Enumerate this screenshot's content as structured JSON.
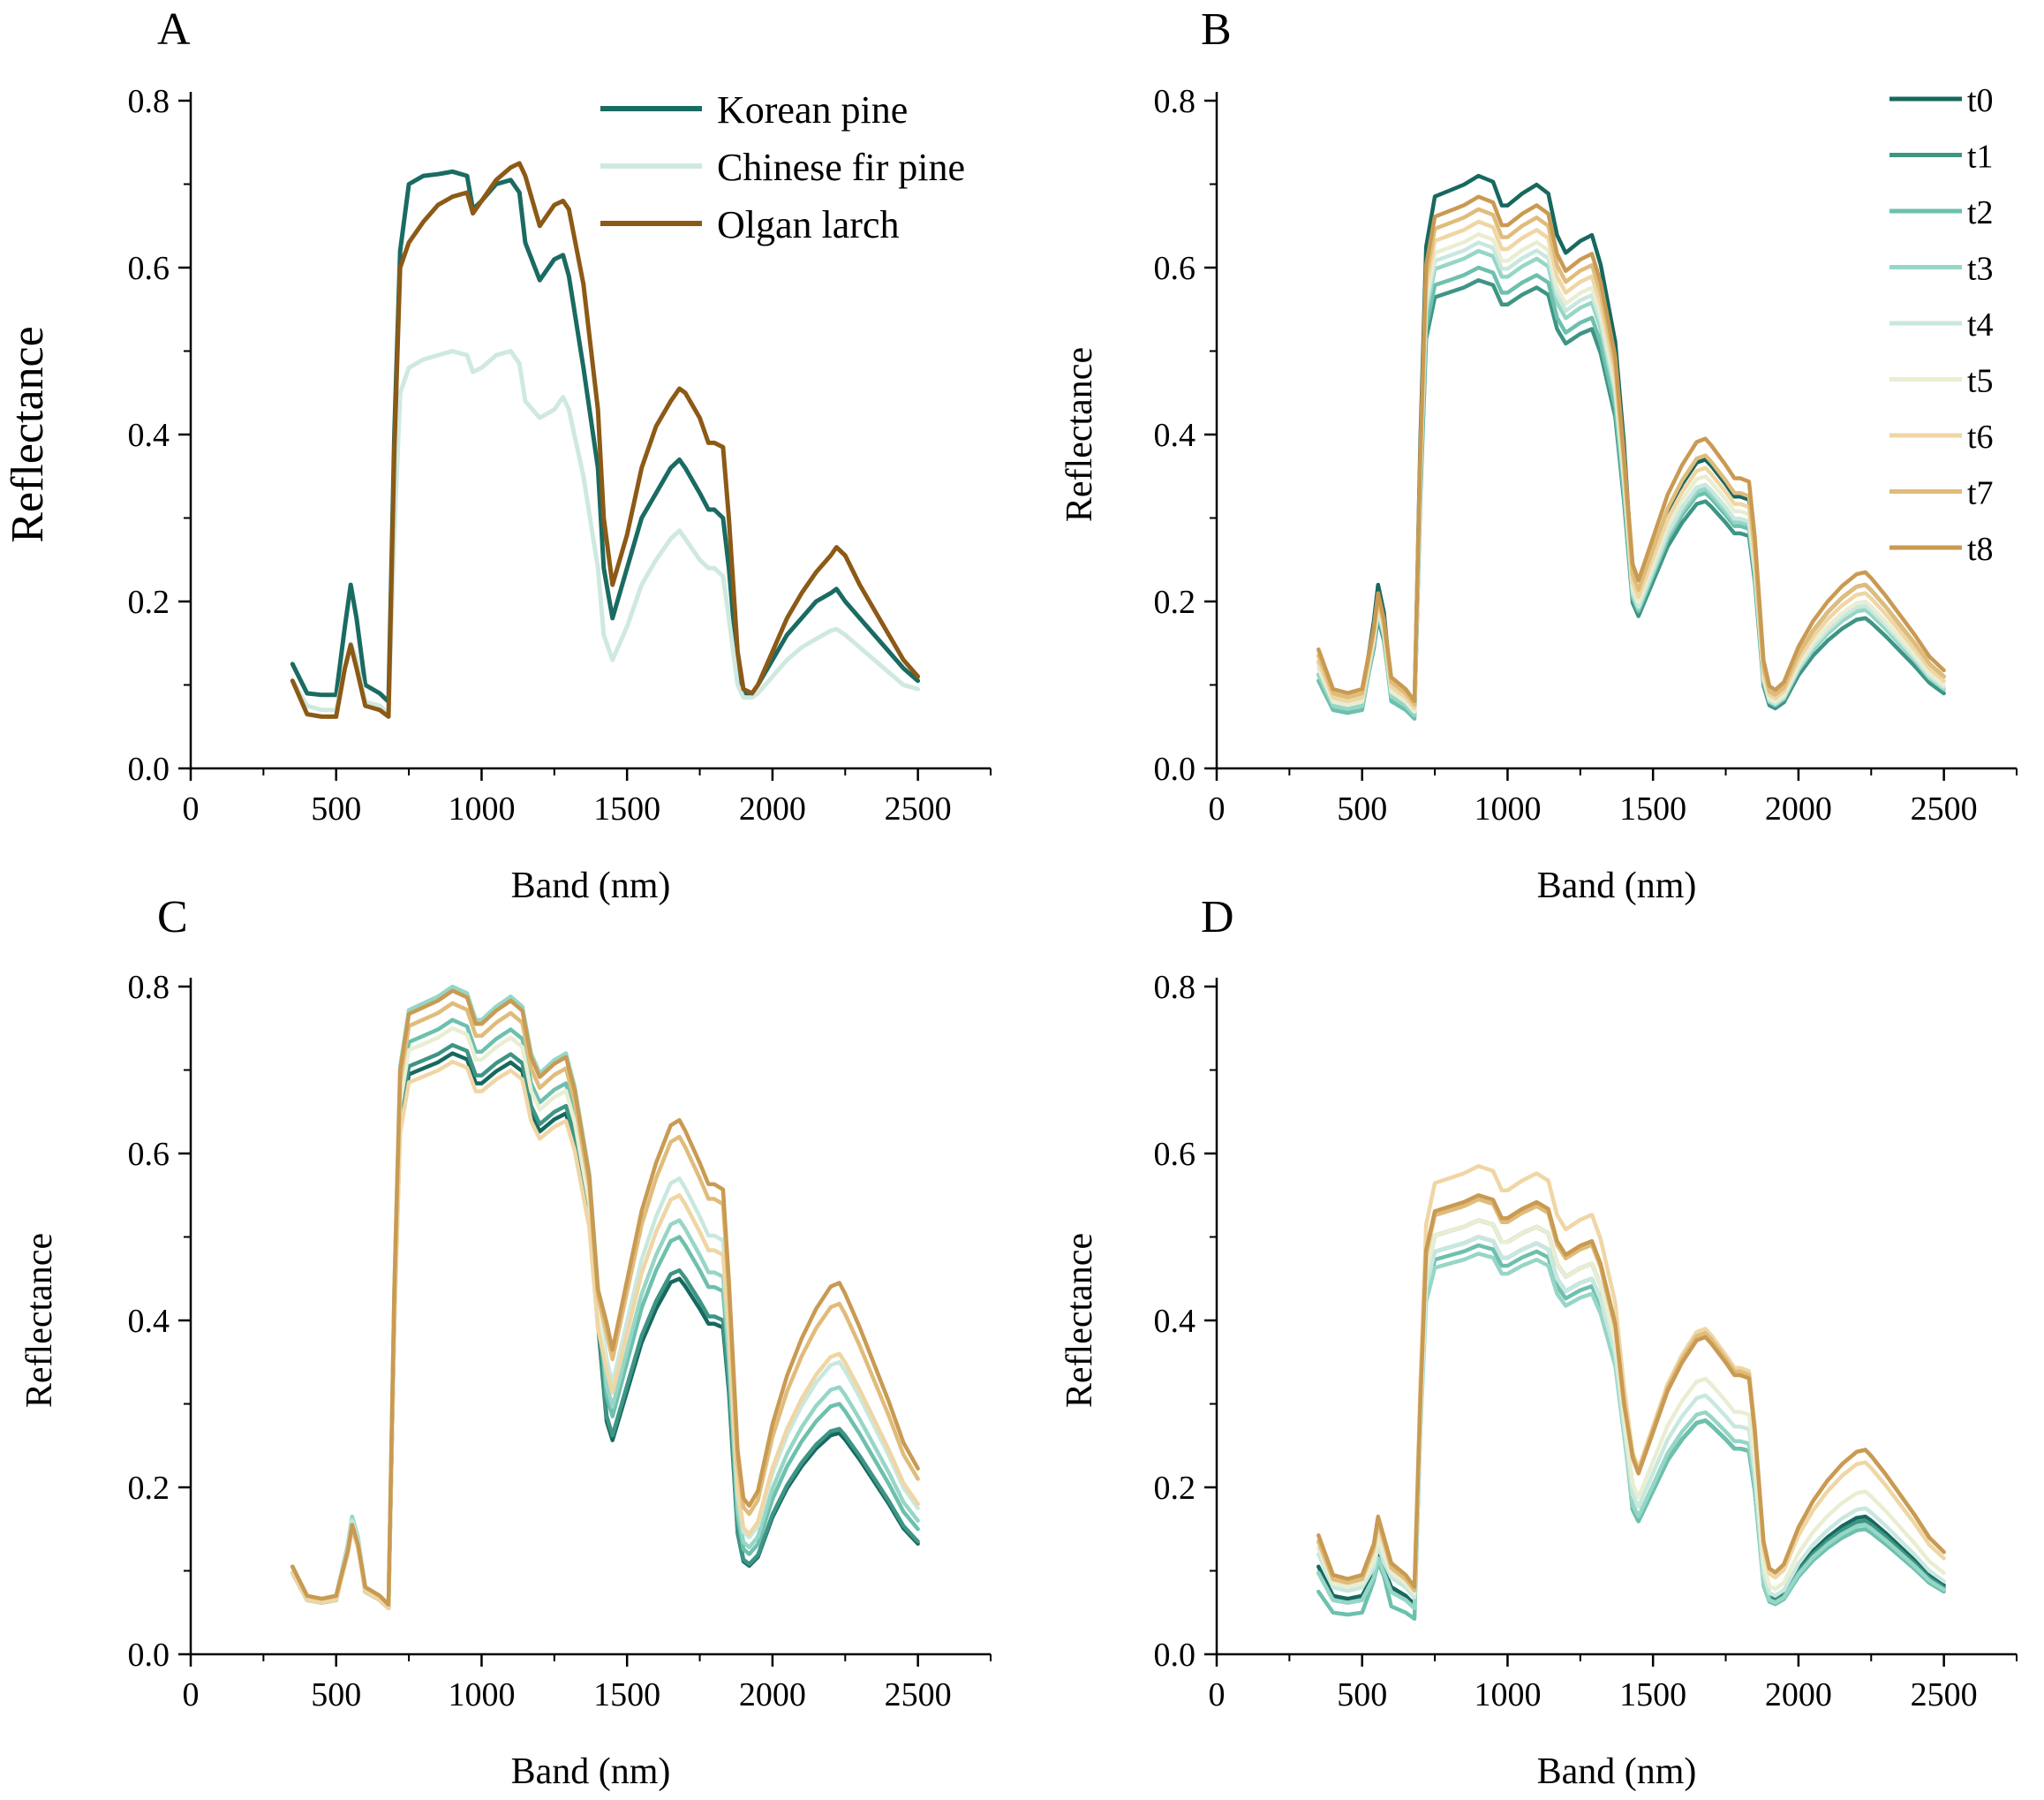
{
  "figure": {
    "panel_labels": [
      "A",
      "B",
      "C",
      "D"
    ]
  },
  "colors": {
    "korean": "#1a6b62",
    "chinese": "#cfe9e0",
    "olgan": "#8c5a16",
    "t0": "#17685f",
    "t1": "#3e9585",
    "t2": "#6dc0ad",
    "t3": "#96d6c6",
    "t4": "#c8e8df",
    "t5": "#e9eed2",
    "t6": "#efd6a4",
    "t7": "#e0bc7b",
    "t8": "#c99a52"
  },
  "chart_data": [
    {
      "panel": "A",
      "type": "line",
      "xlabel": "Band (nm)",
      "ylabel": "Reflectance",
      "xlim": [
        0,
        2750
      ],
      "ylim": [
        0,
        0.8
      ],
      "xticks": [
        0,
        500,
        1000,
        1500,
        2000,
        2500
      ],
      "yticks": [
        0.0,
        0.2,
        0.4,
        0.6,
        0.8
      ],
      "legend_position": "top-right",
      "x": [
        350,
        400,
        450,
        500,
        530,
        550,
        570,
        600,
        650,
        680,
        700,
        720,
        750,
        800,
        850,
        900,
        950,
        970,
        1000,
        1050,
        1100,
        1130,
        1150,
        1200,
        1250,
        1280,
        1300,
        1350,
        1400,
        1420,
        1450,
        1500,
        1550,
        1600,
        1650,
        1680,
        1700,
        1750,
        1780,
        1800,
        1830,
        1850,
        1880,
        1900,
        1930,
        1950,
        2000,
        2050,
        2100,
        2150,
        2200,
        2220,
        2250,
        2300,
        2350,
        2400,
        2450,
        2500
      ],
      "series": [
        {
          "name": "Korean pine",
          "color_key": "korean",
          "values": [
            0.125,
            0.09,
            0.088,
            0.088,
            0.17,
            0.22,
            0.18,
            0.1,
            0.09,
            0.08,
            0.4,
            0.62,
            0.7,
            0.71,
            0.712,
            0.715,
            0.71,
            0.67,
            0.68,
            0.7,
            0.705,
            0.69,
            0.63,
            0.585,
            0.61,
            0.615,
            0.59,
            0.48,
            0.36,
            0.24,
            0.18,
            0.24,
            0.3,
            0.33,
            0.36,
            0.37,
            0.36,
            0.33,
            0.31,
            0.31,
            0.3,
            0.24,
            0.12,
            0.09,
            0.09,
            0.1,
            0.13,
            0.16,
            0.18,
            0.2,
            0.21,
            0.215,
            0.2,
            0.18,
            0.16,
            0.14,
            0.12,
            0.105
          ]
        },
        {
          "name": "Chinese fir pine",
          "color_key": "chinese",
          "values": [
            0.105,
            0.075,
            0.07,
            0.07,
            0.12,
            0.15,
            0.13,
            0.08,
            0.075,
            0.065,
            0.28,
            0.45,
            0.48,
            0.49,
            0.495,
            0.5,
            0.495,
            0.475,
            0.48,
            0.495,
            0.5,
            0.485,
            0.44,
            0.42,
            0.43,
            0.445,
            0.43,
            0.35,
            0.24,
            0.16,
            0.13,
            0.17,
            0.22,
            0.25,
            0.275,
            0.285,
            0.275,
            0.25,
            0.24,
            0.24,
            0.23,
            0.18,
            0.1,
            0.085,
            0.085,
            0.09,
            0.11,
            0.13,
            0.145,
            0.155,
            0.165,
            0.167,
            0.16,
            0.145,
            0.13,
            0.115,
            0.1,
            0.095
          ]
        },
        {
          "name": "Olgan larch",
          "color_key": "olgan",
          "values": [
            0.105,
            0.065,
            0.062,
            0.062,
            0.12,
            0.148,
            0.12,
            0.075,
            0.07,
            0.062,
            0.38,
            0.6,
            0.63,
            0.655,
            0.675,
            0.685,
            0.69,
            0.665,
            0.68,
            0.705,
            0.72,
            0.725,
            0.71,
            0.65,
            0.675,
            0.68,
            0.67,
            0.58,
            0.43,
            0.3,
            0.22,
            0.28,
            0.36,
            0.41,
            0.44,
            0.455,
            0.45,
            0.42,
            0.39,
            0.39,
            0.385,
            0.3,
            0.14,
            0.095,
            0.09,
            0.1,
            0.14,
            0.18,
            0.21,
            0.235,
            0.255,
            0.265,
            0.255,
            0.22,
            0.19,
            0.16,
            0.13,
            0.11
          ]
        }
      ]
    },
    {
      "panel": "B",
      "type": "line",
      "xlabel": "Band (nm)",
      "ylabel": "Reflectance",
      "xlim": [
        0,
        2750
      ],
      "ylim": [
        0,
        0.8
      ],
      "xticks": [
        0,
        500,
        1000,
        1500,
        2000,
        2500
      ],
      "yticks": [
        0.0,
        0.2,
        0.4,
        0.6,
        0.8
      ],
      "legend_position": "top-right",
      "series": [
        {
          "name": "t0",
          "color_key": "t0",
          "peak": 0.71,
          "vis": 0.22,
          "nir2": 0.37,
          "swir": 0.22,
          "base": 0.085
        },
        {
          "name": "t1",
          "color_key": "t1",
          "peak": 0.585,
          "vis": 0.18,
          "nir2": 0.32,
          "swir": 0.18,
          "base": 0.075
        },
        {
          "name": "t2",
          "color_key": "t2",
          "peak": 0.6,
          "vis": 0.185,
          "nir2": 0.33,
          "swir": 0.19,
          "base": 0.07
        },
        {
          "name": "t3",
          "color_key": "t3",
          "peak": 0.62,
          "vis": 0.19,
          "nir2": 0.335,
          "swir": 0.19,
          "base": 0.075
        },
        {
          "name": "t4",
          "color_key": "t4",
          "peak": 0.63,
          "vis": 0.19,
          "nir2": 0.34,
          "swir": 0.195,
          "base": 0.08
        },
        {
          "name": "t5",
          "color_key": "t5",
          "peak": 0.64,
          "vis": 0.195,
          "nir2": 0.35,
          "swir": 0.2,
          "base": 0.08
        },
        {
          "name": "t6",
          "color_key": "t6",
          "peak": 0.655,
          "vis": 0.2,
          "nir2": 0.36,
          "swir": 0.21,
          "base": 0.085
        },
        {
          "name": "t7",
          "color_key": "t7",
          "peak": 0.67,
          "vis": 0.205,
          "nir2": 0.375,
          "swir": 0.22,
          "base": 0.09
        },
        {
          "name": "t8",
          "color_key": "t8",
          "peak": 0.685,
          "vis": 0.21,
          "nir2": 0.395,
          "swir": 0.235,
          "base": 0.095
        }
      ]
    },
    {
      "panel": "C",
      "type": "line",
      "xlabel": "Band (nm)",
      "ylabel": "Reflectance",
      "xlim": [
        0,
        2750
      ],
      "ylim": [
        0,
        0.8
      ],
      "xticks": [
        0,
        500,
        1000,
        1500,
        2000,
        2500
      ],
      "yticks": [
        0.0,
        0.2,
        0.4,
        0.6,
        0.8
      ],
      "series": [
        {
          "name": "t0",
          "color_key": "t0",
          "peak": 0.72,
          "vis": 0.155,
          "nir2": 0.45,
          "swir": 0.265,
          "base": 0.065
        },
        {
          "name": "t1",
          "color_key": "t1",
          "peak": 0.73,
          "vis": 0.155,
          "nir2": 0.46,
          "swir": 0.27,
          "base": 0.065
        },
        {
          "name": "t2",
          "color_key": "t2",
          "peak": 0.76,
          "vis": 0.16,
          "nir2": 0.5,
          "swir": 0.3,
          "base": 0.07
        },
        {
          "name": "t3",
          "color_key": "t3",
          "peak": 0.8,
          "vis": 0.165,
          "nir2": 0.52,
          "swir": 0.32,
          "base": 0.07
        },
        {
          "name": "t4",
          "color_key": "t4",
          "peak": 0.78,
          "vis": 0.16,
          "nir2": 0.57,
          "swir": 0.35,
          "base": 0.07
        },
        {
          "name": "t5",
          "color_key": "t5",
          "peak": 0.75,
          "vis": 0.155,
          "nir2": 0.55,
          "swir": 0.36,
          "base": 0.07
        },
        {
          "name": "t6",
          "color_key": "t6",
          "peak": 0.71,
          "vis": 0.15,
          "nir2": 0.55,
          "swir": 0.36,
          "base": 0.065
        },
        {
          "name": "t7",
          "color_key": "t7",
          "peak": 0.78,
          "vis": 0.155,
          "nir2": 0.62,
          "swir": 0.42,
          "base": 0.07
        },
        {
          "name": "t8",
          "color_key": "t8",
          "peak": 0.795,
          "vis": 0.155,
          "nir2": 0.64,
          "swir": 0.445,
          "base": 0.07
        }
      ]
    },
    {
      "panel": "D",
      "type": "line",
      "xlabel": "Band (nm)",
      "ylabel": "Reflectance",
      "xlim": [
        0,
        2750
      ],
      "ylim": [
        0,
        0.8
      ],
      "xticks": [
        0,
        500,
        1000,
        1500,
        2000,
        2500
      ],
      "yticks": [
        0.0,
        0.2,
        0.4,
        0.6,
        0.8
      ],
      "series": [
        {
          "name": "t0",
          "color_key": "t0",
          "peak": 0.52,
          "vis": 0.12,
          "nir2": 0.28,
          "swir": 0.165,
          "base": 0.07
        },
        {
          "name": "t1",
          "color_key": "t1",
          "peak": 0.5,
          "vis": 0.115,
          "nir2": 0.28,
          "swir": 0.16,
          "base": 0.065
        },
        {
          "name": "t2",
          "color_key": "t2",
          "peak": 0.49,
          "vis": 0.11,
          "nir2": 0.28,
          "swir": 0.15,
          "base": 0.05
        },
        {
          "name": "t3",
          "color_key": "t3",
          "peak": 0.48,
          "vis": 0.115,
          "nir2": 0.29,
          "swir": 0.155,
          "base": 0.065
        },
        {
          "name": "t4",
          "color_key": "t4",
          "peak": 0.5,
          "vis": 0.13,
          "nir2": 0.31,
          "swir": 0.175,
          "base": 0.08
        },
        {
          "name": "t5",
          "color_key": "t5",
          "peak": 0.52,
          "vis": 0.14,
          "nir2": 0.33,
          "swir": 0.195,
          "base": 0.085
        },
        {
          "name": "t6",
          "color_key": "t6",
          "peak": 0.585,
          "vis": 0.155,
          "nir2": 0.39,
          "swir": 0.23,
          "base": 0.09
        },
        {
          "name": "t7",
          "color_key": "t7",
          "peak": 0.545,
          "vis": 0.16,
          "nir2": 0.385,
          "swir": 0.245,
          "base": 0.09
        },
        {
          "name": "t8",
          "color_key": "t8",
          "peak": 0.55,
          "vis": 0.165,
          "nir2": 0.38,
          "swir": 0.245,
          "base": 0.095
        }
      ]
    }
  ]
}
